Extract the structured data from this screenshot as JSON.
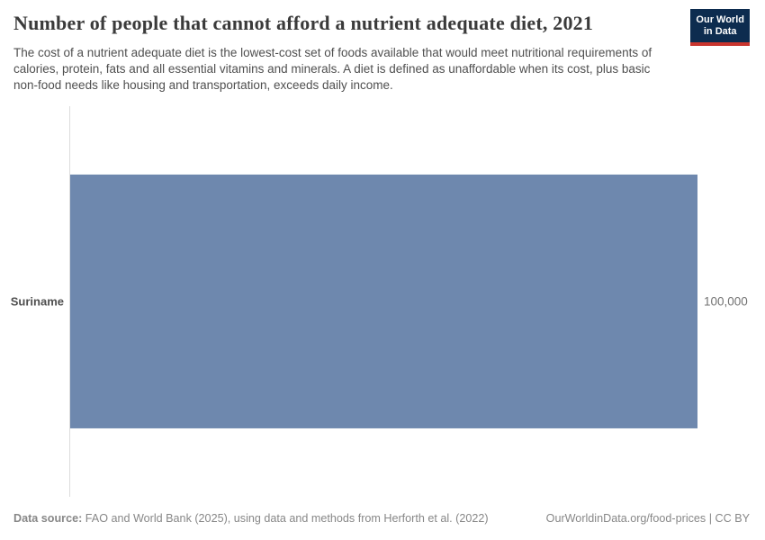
{
  "header": {
    "title": "Number of people that cannot afford a nutrient adequate diet, 2021",
    "subtitle": "The cost of a nutrient adequate diet is the lowest-cost set of foods available that would meet nutritional requirements of calories, protein, fats and all essential vitamins and minerals. A diet is defined as unaffordable when its cost, plus basic non-food needs like housing and transportation, exceeds daily income.",
    "logo": {
      "line1": "Our World",
      "line2": "in Data",
      "bg": "#0d2c4f",
      "accent": "#c9352e"
    }
  },
  "chart_data": {
    "type": "bar",
    "orientation": "horizontal",
    "title": "Number of people that cannot afford a nutrient adequate diet, 2021",
    "categories": [
      "Suriname"
    ],
    "values": [
      100000
    ],
    "value_labels": [
      "100,000"
    ],
    "xlim": [
      0,
      100000
    ],
    "bar_color": "#6e88ae",
    "axis_line_color": "#dcdcdc",
    "grid": false,
    "legend": false
  },
  "footer": {
    "source_label": "Data source:",
    "source_text": "FAO and World Bank (2025), using data and methods from Herforth et al. (2022)",
    "link_text": "OurWorldinData.org/food-prices",
    "separator": " | ",
    "license": "CC BY"
  }
}
